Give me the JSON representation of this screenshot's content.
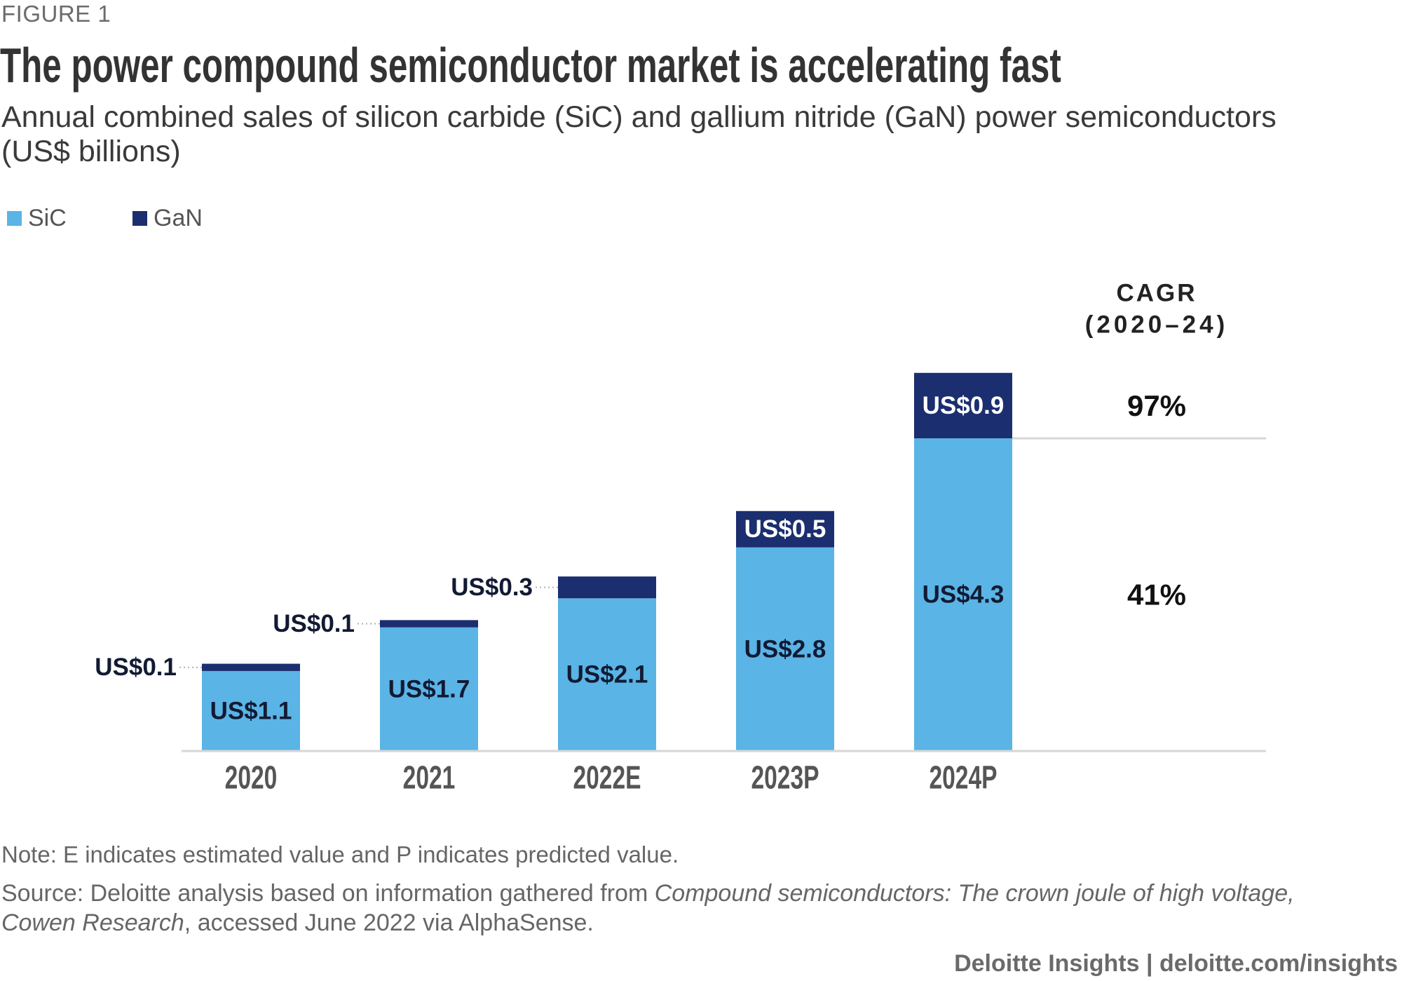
{
  "figure_label": "FIGURE 1",
  "title": "The power compound semiconductor market is accelerating fast",
  "subtitle": "Annual combined sales of silicon carbide (SiC) and gallium nitride (GaN) power semiconductors (US$ billions)",
  "legend": [
    {
      "label": "SiC",
      "color": "#5ab4e5"
    },
    {
      "label": "GaN",
      "color": "#1b2e6f"
    }
  ],
  "chart_data": {
    "type": "bar",
    "stacked": true,
    "categories": [
      "2020",
      "2021",
      "2022E",
      "2023P",
      "2024P"
    ],
    "series": [
      {
        "name": "SiC",
        "color": "#5ab4e5",
        "values": [
          1.1,
          1.7,
          2.1,
          2.8,
          4.3
        ],
        "labels": [
          "US$1.1",
          "US$1.7",
          "US$2.1",
          "US$2.8",
          "US$4.3"
        ]
      },
      {
        "name": "GaN",
        "color": "#1b2e6f",
        "values": [
          0.1,
          0.1,
          0.3,
          0.5,
          0.9
        ],
        "labels": [
          "US$0.1",
          "US$0.1",
          "US$0.3",
          "US$0.5",
          "US$0.9"
        ]
      }
    ],
    "legend_position": "top-left",
    "grid": false,
    "cagr": {
      "header": "CAGR",
      "period": "(2020–24)",
      "values": [
        {
          "series": "GaN",
          "label": "97%"
        },
        {
          "series": "SiC",
          "label": "41%"
        }
      ]
    }
  },
  "note": "Note: E indicates estimated value and P indicates predicted value.",
  "source": {
    "prefix": "Source: Deloitte analysis based on information gathered from ",
    "italic": "Compound semiconductors: The crown joule of high voltage, Cowen Research",
    "suffix": ", accessed June 2022 via AlphaSense."
  },
  "credit": "Deloitte Insights | deloitte.com/insights"
}
